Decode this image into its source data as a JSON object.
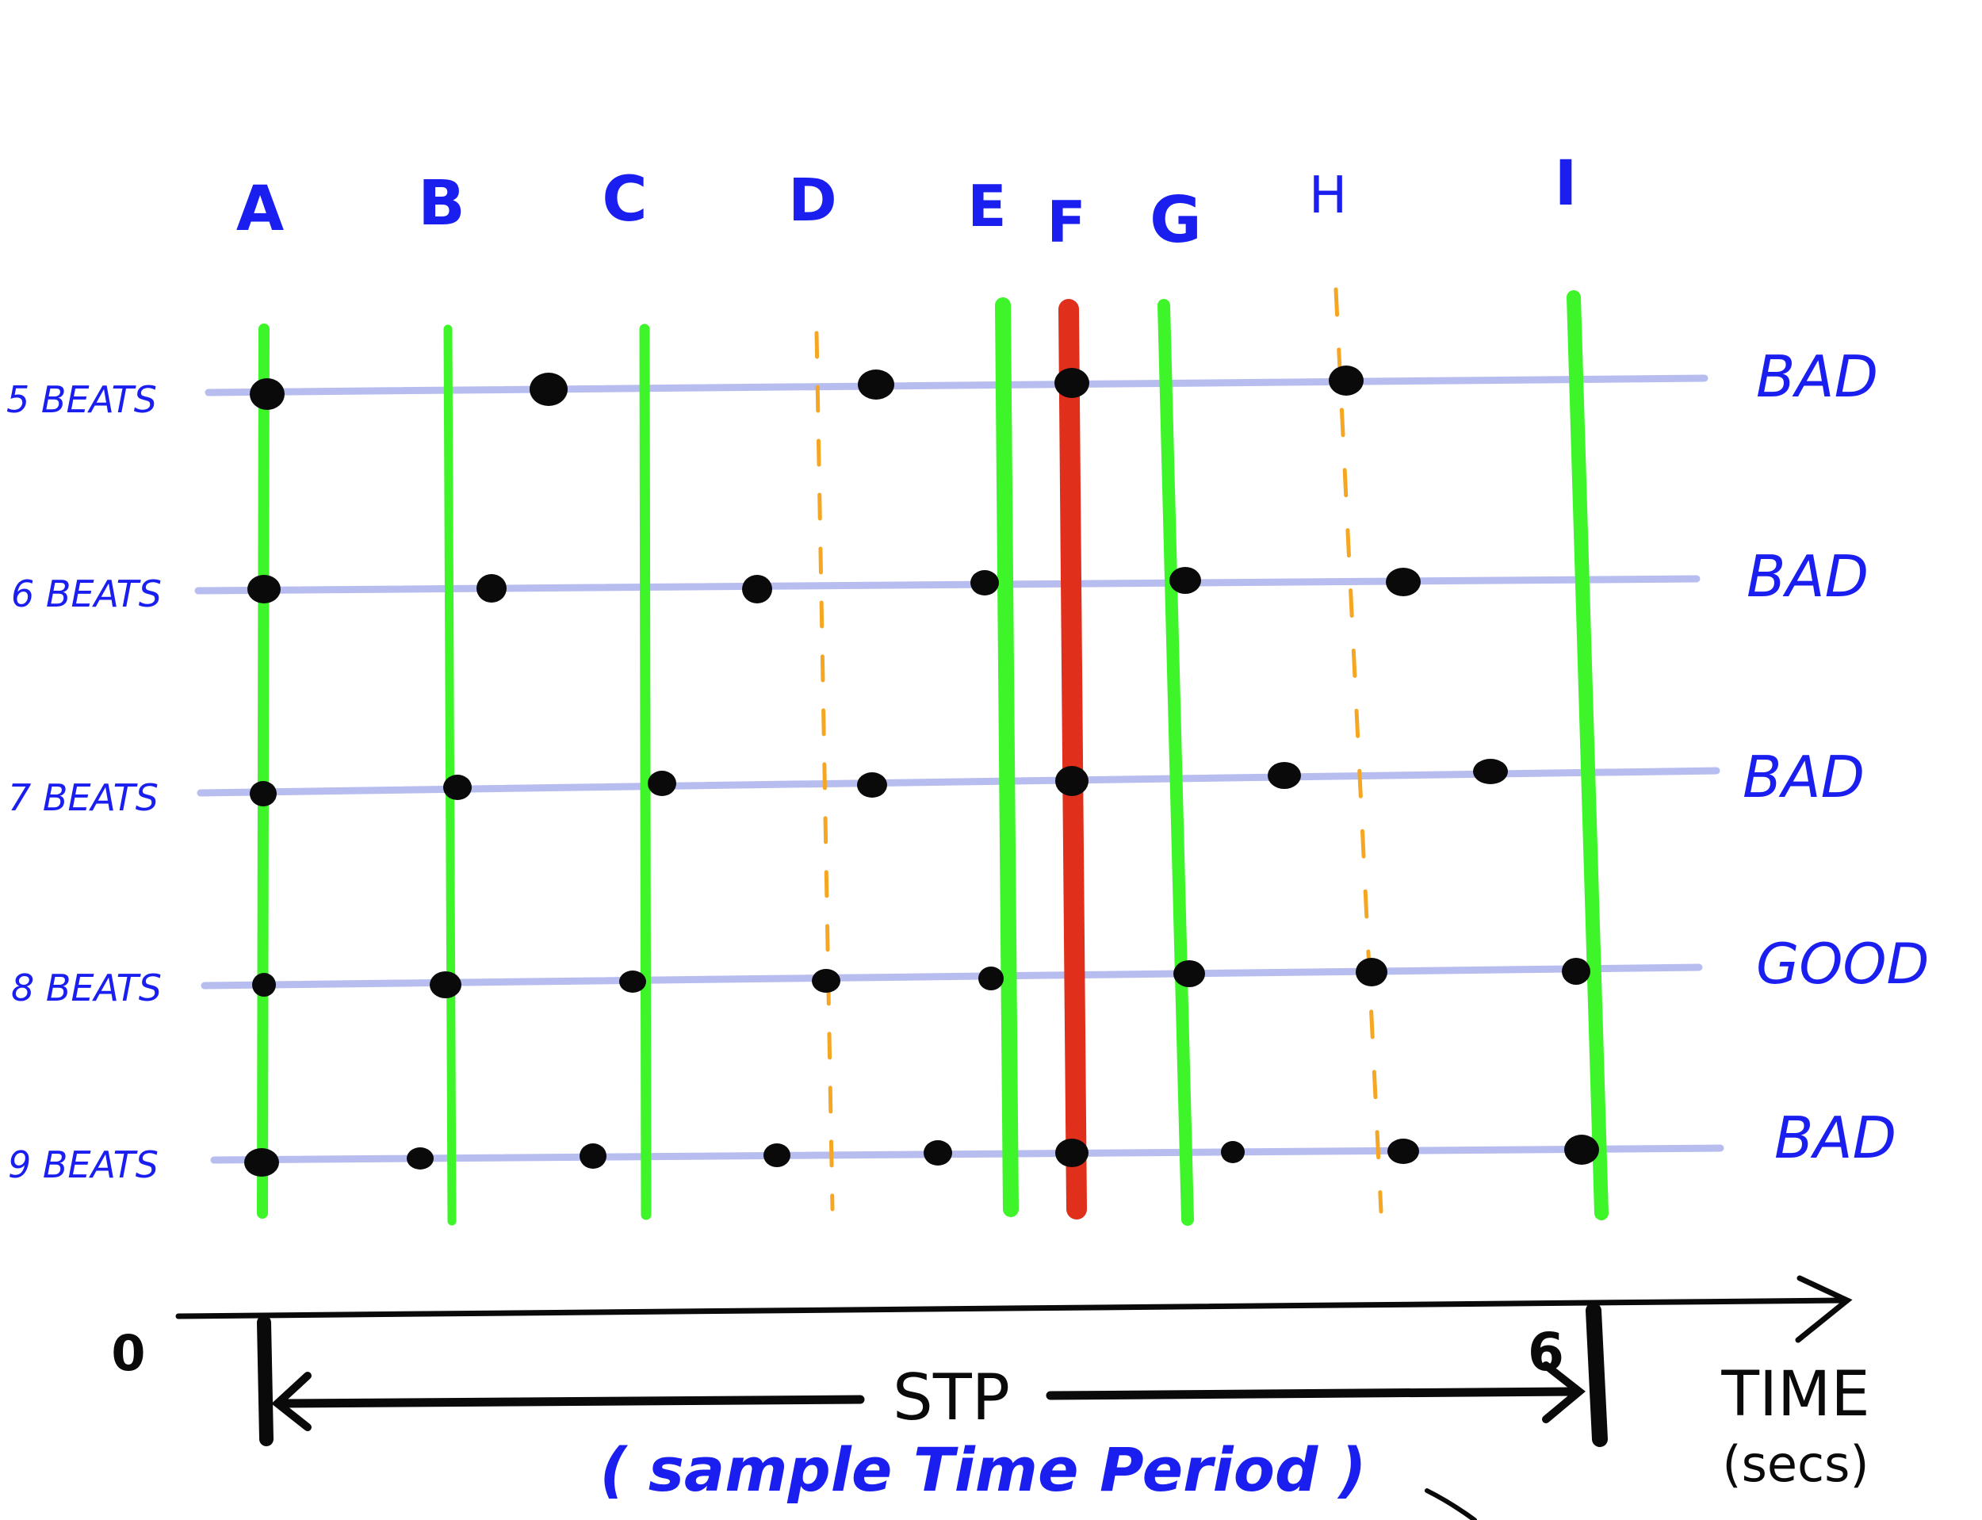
{
  "colors": {
    "ink_blue": "#1a1ff0",
    "ink_black": "#0a0a0a",
    "good_line": "#3ef52a",
    "bad_line": "#e0301b",
    "maybe_line": "#f5a623",
    "beat_row": "#b8bdf0"
  },
  "columns": [
    {
      "label": "A",
      "style": "solid",
      "color_key": "good_line"
    },
    {
      "label": "B",
      "style": "solid",
      "color_key": "good_line"
    },
    {
      "label": "C",
      "style": "solid",
      "color_key": "good_line"
    },
    {
      "label": "D",
      "style": "dashed",
      "color_key": "maybe_line"
    },
    {
      "label": "E",
      "style": "solid",
      "color_key": "good_line"
    },
    {
      "label": "F",
      "style": "solid",
      "color_key": "bad_line"
    },
    {
      "label": "G",
      "style": "solid",
      "color_key": "good_line"
    },
    {
      "label": "H",
      "style": "dashed",
      "color_key": "maybe_line"
    },
    {
      "label": "I",
      "style": "solid",
      "color_key": "good_line"
    }
  ],
  "rows": [
    {
      "label": "5 BEATS",
      "verdict": "BAD"
    },
    {
      "label": "6 BEATS",
      "verdict": "BAD"
    },
    {
      "label": "7 BEATS",
      "verdict": "BAD"
    },
    {
      "label": "8 BEATS",
      "verdict": "GOOD"
    },
    {
      "label": "9 BEATS",
      "verdict": "BAD"
    }
  ],
  "axis": {
    "start_label": "0",
    "end_label": "6",
    "span_label": "STP",
    "span_caption": "( sample Time Period )",
    "axis_title": "TIME",
    "axis_unit": "(secs)"
  }
}
